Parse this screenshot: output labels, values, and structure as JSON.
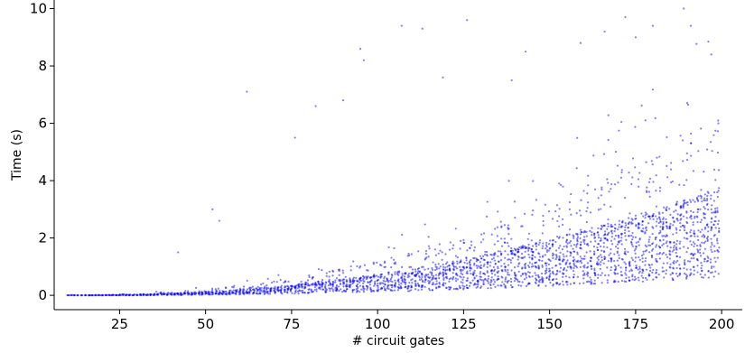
{
  "chart_data": {
    "type": "scatter",
    "title": "",
    "xlabel": "# circuit gates",
    "ylabel": "Time (s)",
    "xlim": [
      6,
      206
    ],
    "ylim": [
      -0.5,
      10.3
    ],
    "xticks": [
      25,
      50,
      75,
      100,
      125,
      150,
      175,
      200
    ],
    "yticks": [
      0,
      2,
      4,
      6,
      8,
      10
    ],
    "x_range_of_points": [
      10,
      199
    ],
    "point_color": "#0000ff",
    "point_opacity": 0.5,
    "grid": false,
    "legend": "none",
    "spines": [
      "left",
      "bottom"
    ],
    "notable_outliers": [
      {
        "x": 42,
        "y": 1.5
      },
      {
        "x": 52,
        "y": 3.0
      },
      {
        "x": 54,
        "y": 2.6
      },
      {
        "x": 62,
        "y": 7.1
      },
      {
        "x": 76,
        "y": 5.5
      },
      {
        "x": 82,
        "y": 6.6
      },
      {
        "x": 90,
        "y": 6.8
      },
      {
        "x": 95,
        "y": 8.6
      },
      {
        "x": 96,
        "y": 8.2
      },
      {
        "x": 107,
        "y": 9.4
      },
      {
        "x": 113,
        "y": 9.3
      },
      {
        "x": 119,
        "y": 7.6
      },
      {
        "x": 126,
        "y": 9.6
      },
      {
        "x": 139,
        "y": 7.5
      },
      {
        "x": 143,
        "y": 8.5
      },
      {
        "x": 159,
        "y": 8.8
      },
      {
        "x": 166,
        "y": 9.2
      },
      {
        "x": 172,
        "y": 9.7
      },
      {
        "x": 175,
        "y": 9.0
      },
      {
        "x": 180,
        "y": 9.4
      },
      {
        "x": 189,
        "y": 10.0
      },
      {
        "x": 191,
        "y": 9.4
      },
      {
        "x": 197,
        "y": 8.4
      }
    ],
    "trend": {
      "description": "exponential growth of median time with gate count",
      "median_at_x": [
        {
          "x": 10,
          "y": 0.0
        },
        {
          "x": 50,
          "y": 0.1
        },
        {
          "x": 75,
          "y": 0.25
        },
        {
          "x": 100,
          "y": 0.5
        },
        {
          "x": 125,
          "y": 0.9
        },
        {
          "x": 150,
          "y": 1.3
        },
        {
          "x": 175,
          "y": 1.7
        },
        {
          "x": 199,
          "y": 2.1
        }
      ]
    }
  }
}
